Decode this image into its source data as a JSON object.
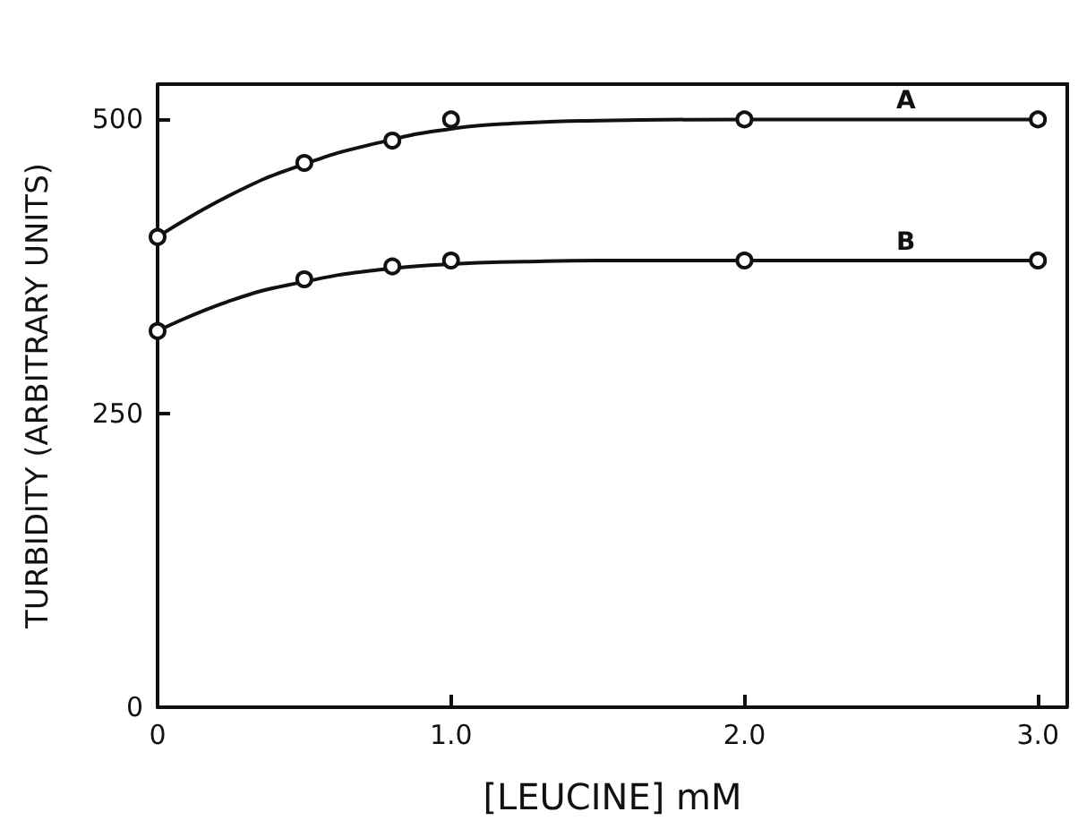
{
  "chart_data": {
    "type": "scatter",
    "xlabel": "[LEUCINE] mM",
    "ylabel": "TURBIDITY (ARBITRARY UNITS)",
    "xlim": [
      0,
      3.1
    ],
    "ylim": [
      0,
      530
    ],
    "xticks": [
      0,
      {
        "value": 1,
        "label": "1.0"
      },
      {
        "value": 2,
        "label": "2.0"
      },
      {
        "value": 3,
        "label": "3.0"
      }
    ],
    "yticks": [
      0,
      250,
      500
    ],
    "grid": false,
    "series": [
      {
        "color": "#111111",
        "marker": "circle",
        "x": [
          0,
          0.5,
          0.8,
          1,
          2,
          3
        ],
        "values": [
          400,
          463,
          482,
          500,
          500,
          500
        ]
      },
      {
        "color": "#111111",
        "marker": "circle",
        "x": [
          0,
          0.5,
          0.8,
          1,
          2,
          3
        ],
        "values": [
          320,
          364,
          375,
          380,
          380,
          380
        ]
      },
      {
        "type": "line",
        "name": "A",
        "color": "#111111",
        "marker": "none",
        "line_style": "solid",
        "x": [
          0,
          0.25,
          0.5,
          0.75,
          1,
          1.25,
          1.5,
          2,
          2.55,
          3
        ],
        "values": [
          400,
          436,
          462,
          480,
          492,
          497,
          499,
          500,
          500,
          500
        ]
      },
      {
        "type": "line",
        "name": "B",
        "color": "#111111",
        "marker": "none",
        "line_style": "solid",
        "x": [
          0,
          0.25,
          0.5,
          0.75,
          1,
          1.25,
          1.5,
          2,
          2.55,
          3
        ],
        "values": [
          320,
          346,
          362,
          372,
          377,
          379,
          380,
          380,
          380,
          380
        ]
      }
    ]
  }
}
